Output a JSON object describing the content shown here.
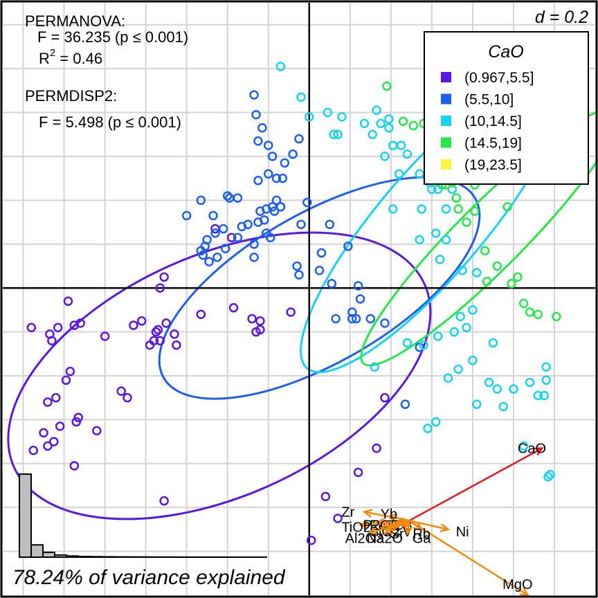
{
  "chart_data": {
    "type": "scatter",
    "subtype": "biplot with confidence ellipses",
    "grid": true,
    "scale_label": "d = 0.2",
    "variance_text": "78.24% of variance explained",
    "stats": {
      "permanova_title": "PERMANOVA:",
      "permanova_f": "F = 36.235 (p ≤ 0.001)",
      "permanova_r2_prefix": "R",
      "permanova_r2_sup": "2",
      "permanova_r2_value": " = 0.46",
      "permdisp_title": "PERMDISP2:",
      "permdisp_f": "F = 5.498 (p ≤ 0.001)"
    },
    "legend": {
      "title": "CaO",
      "placement": "top-right",
      "entries": [
        {
          "label": "(0.967,5.5]",
          "color": "#5B16E6"
        },
        {
          "label": "(5.5,10]",
          "color": "#1C5FF0"
        },
        {
          "label": "(10,14.5]",
          "color": "#15D3F4"
        },
        {
          "label": "(14.5,19]",
          "color": "#26E84A"
        },
        {
          "label": "(19,23.5]",
          "color": "#FAF53A"
        }
      ]
    },
    "xlim": [
      -1.5,
      1.4
    ],
    "ylim": [
      -1.4,
      1.3
    ],
    "groups": [
      {
        "label": "(0.967,5.5]",
        "color": "#5B16E6",
        "ellipse": {
          "cx": -0.44,
          "cy": -0.4,
          "rx": 1.1,
          "ry": 0.55,
          "angle": 24
        },
        "points": [
          [
            -1.36,
            -0.18
          ],
          [
            -1.27,
            -0.21
          ],
          [
            -1.23,
            -0.18
          ],
          [
            -1.18,
            -0.06
          ],
          [
            -1.15,
            -0.17
          ],
          [
            -1.12,
            -0.16
          ],
          [
            -1.26,
            -0.24
          ],
          [
            -1.19,
            -0.42
          ],
          [
            -1.17,
            -0.38
          ],
          [
            -1.13,
            -0.59
          ],
          [
            -1.24,
            -0.5
          ],
          [
            -1.28,
            -0.52
          ],
          [
            -1.22,
            -0.63
          ],
          [
            -1.25,
            -0.7
          ],
          [
            -1.3,
            -0.66
          ],
          [
            -1.28,
            -0.72
          ],
          [
            -1.35,
            -0.74
          ],
          [
            -1.15,
            -0.81
          ],
          [
            -1.14,
            -0.61
          ],
          [
            -1.04,
            -0.65
          ],
          [
            -1.0,
            -0.22
          ],
          [
            -0.92,
            -0.47
          ],
          [
            -0.89,
            -0.5
          ],
          [
            -0.86,
            -0.17
          ],
          [
            -0.82,
            -0.15
          ],
          [
            -0.78,
            -0.26
          ],
          [
            -0.75,
            -0.2
          ],
          [
            -0.76,
            -0.24
          ],
          [
            -0.74,
            -0.19
          ],
          [
            -0.73,
            -0.24
          ],
          [
            -0.7,
            -0.16
          ],
          [
            -0.66,
            -0.21
          ],
          [
            -0.65,
            -0.26
          ],
          [
            -0.73,
            0.0
          ],
          [
            -0.71,
            0.05
          ],
          [
            -0.53,
            -0.12
          ],
          [
            -0.37,
            -0.09
          ],
          [
            -0.28,
            -0.14
          ],
          [
            -0.26,
            -0.2
          ],
          [
            -0.24,
            -0.15
          ],
          [
            -0.24,
            -0.19
          ],
          [
            -0.09,
            -0.11
          ],
          [
            -0.71,
            -0.97
          ],
          [
            -0.46,
            0.27
          ],
          [
            -0.38,
            0.23
          ],
          [
            0.08,
            -0.95
          ],
          [
            0.14,
            -1.05
          ],
          [
            0.01,
            -1.15
          ],
          [
            0.24,
            -0.84
          ],
          [
            0.33,
            -0.73
          ],
          [
            0.37,
            -0.5
          ]
        ]
      },
      {
        "label": "(5.5,10]",
        "color": "#1C5FF0",
        "ellipse": {
          "cx": 0.05,
          "cy": 0.0,
          "rx": 0.88,
          "ry": 0.34,
          "angle": 30
        },
        "points": [
          [
            -0.6,
            0.33
          ],
          [
            -0.53,
            0.4
          ],
          [
            -0.51,
            0.19
          ],
          [
            -0.53,
            0.17
          ],
          [
            -0.5,
            0.22
          ],
          [
            -0.49,
            0.12
          ],
          [
            -0.52,
            0.15
          ],
          [
            -0.46,
            0.25
          ],
          [
            -0.45,
            0.14
          ],
          [
            -0.47,
            0.33
          ],
          [
            -0.42,
            0.27
          ],
          [
            -0.41,
            0.18
          ],
          [
            -0.4,
            0.42
          ],
          [
            -0.39,
            0.41
          ],
          [
            -0.35,
            0.41
          ],
          [
            -0.33,
            0.28
          ],
          [
            -0.35,
            0.23
          ],
          [
            -0.3,
            0.29
          ],
          [
            -0.27,
            0.2
          ],
          [
            -0.25,
            0.3
          ],
          [
            -0.27,
            0.14
          ],
          [
            -0.24,
            0.35
          ],
          [
            -0.22,
            0.31
          ],
          [
            -0.21,
            0.36
          ],
          [
            -0.18,
            0.37
          ],
          [
            -0.17,
            0.35
          ],
          [
            -0.16,
            0.4
          ],
          [
            -0.14,
            0.37
          ],
          [
            -0.14,
            0.37
          ],
          [
            -0.19,
            0.23
          ],
          [
            -0.21,
            0.25
          ],
          [
            -0.25,
            0.49
          ],
          [
            -0.2,
            0.52
          ],
          [
            -0.16,
            0.5
          ],
          [
            -0.13,
            0.5
          ],
          [
            -0.12,
            0.57
          ],
          [
            -0.08,
            0.61
          ],
          [
            -0.2,
            0.65
          ],
          [
            -0.25,
            0.67
          ],
          [
            -0.26,
            0.79
          ],
          [
            -0.27,
            0.88
          ],
          [
            -0.23,
            0.73
          ],
          [
            -0.18,
            0.6
          ],
          [
            -0.05,
            0.68
          ],
          [
            -0.01,
            0.39
          ],
          [
            -0.04,
            0.29
          ],
          [
            -0.06,
            0.1
          ],
          [
            -0.05,
            0.06
          ],
          [
            0.06,
            0.16
          ],
          [
            0.05,
            0.08
          ],
          [
            0.1,
            0.29
          ],
          [
            0.11,
            0.02
          ],
          [
            0.19,
            0.19
          ],
          [
            0.21,
            -0.11
          ],
          [
            0.23,
            -0.14
          ],
          [
            0.21,
            -0.14
          ],
          [
            0.24,
            0.01
          ],
          [
            0.25,
            -0.05
          ],
          [
            0.3,
            -0.14
          ],
          [
            0.37,
            -0.16
          ],
          [
            0.13,
            -0.14
          ],
          [
            0.54,
            -0.27
          ],
          [
            0.47,
            -0.53
          ]
        ]
      },
      {
        "label": "(10,14.5]",
        "color": "#15D3F4",
        "ellipse": {
          "cx": 0.6,
          "cy": 0.3,
          "rx": 0.94,
          "ry": 0.24,
          "angle": 49.5
        },
        "points": [
          [
            -0.14,
            1.01
          ],
          [
            0.0,
            0.78
          ],
          [
            -0.04,
            0.87
          ],
          [
            0.09,
            0.8
          ],
          [
            0.12,
            0.7
          ],
          [
            0.14,
            0.7
          ],
          [
            0.16,
            0.78
          ],
          [
            0.27,
            0.75
          ],
          [
            0.39,
            0.73
          ],
          [
            0.31,
            0.7
          ],
          [
            0.35,
            0.75
          ],
          [
            0.33,
            0.81
          ],
          [
            0.39,
            0.77
          ],
          [
            0.41,
            0.65
          ],
          [
            0.37,
            0.6
          ],
          [
            0.45,
            0.65
          ],
          [
            0.48,
            0.61
          ],
          [
            0.44,
            0.52
          ],
          [
            0.54,
            0.52
          ],
          [
            0.59,
            0.48
          ],
          [
            0.6,
            0.45
          ],
          [
            0.63,
            0.45
          ],
          [
            0.7,
            0.45
          ],
          [
            0.67,
            0.36
          ],
          [
            0.55,
            0.36
          ],
          [
            0.41,
            0.36
          ],
          [
            0.54,
            0.22
          ],
          [
            0.62,
            0.25
          ],
          [
            0.67,
            0.22
          ],
          [
            0.64,
            0.13
          ],
          [
            0.75,
            0.08
          ],
          [
            0.82,
            0.07
          ],
          [
            0.8,
            -0.1
          ],
          [
            0.74,
            -0.13
          ],
          [
            0.77,
            -0.18
          ],
          [
            0.71,
            -0.2
          ],
          [
            0.63,
            -0.22
          ],
          [
            0.56,
            -0.26
          ],
          [
            0.48,
            -0.25
          ],
          [
            0.32,
            -0.36
          ],
          [
            0.73,
            -0.37
          ],
          [
            0.8,
            -0.33
          ],
          [
            0.68,
            -0.41
          ],
          [
            0.9,
            -0.25
          ],
          [
            0.88,
            -0.43
          ],
          [
            0.92,
            -0.46
          ],
          [
            1.0,
            -0.46
          ],
          [
            1.08,
            -0.43
          ],
          [
            1.12,
            -0.49
          ],
          [
            1.15,
            -0.49
          ],
          [
            1.16,
            -0.42
          ],
          [
            1.16,
            -0.36
          ],
          [
            0.95,
            -0.54
          ],
          [
            0.82,
            -0.53
          ],
          [
            0.58,
            -0.64
          ],
          [
            0.62,
            -0.61
          ],
          [
            1.05,
            -0.72
          ],
          [
            1.18,
            -0.85
          ],
          [
            1.17,
            -0.86
          ]
        ]
      },
      {
        "label": "(14.5,19]",
        "color": "#26E84A",
        "ellipse": {
          "cx": 0.88,
          "cy": 0.23,
          "rx": 0.87,
          "ry": 0.15,
          "angle": 45
        },
        "points": [
          [
            0.38,
            0.92
          ],
          [
            0.46,
            0.76
          ],
          [
            0.51,
            0.74
          ],
          [
            0.56,
            0.75
          ],
          [
            0.62,
            0.52
          ],
          [
            0.65,
            0.47
          ],
          [
            0.67,
            0.47
          ],
          [
            0.7,
            0.48
          ],
          [
            0.72,
            0.41
          ],
          [
            0.73,
            0.36
          ],
          [
            0.77,
            0.3
          ],
          [
            0.81,
            0.35
          ],
          [
            0.86,
            0.17
          ],
          [
            0.87,
            0.03
          ],
          [
            0.92,
            0.1
          ],
          [
            0.99,
            0.02
          ],
          [
            1.02,
            0.05
          ],
          [
            1.05,
            -0.07
          ],
          [
            1.08,
            -0.11
          ],
          [
            1.12,
            -0.12
          ],
          [
            1.21,
            -0.13
          ],
          [
            0.97,
            0.37
          ],
          [
            0.81,
            0.47
          ]
        ]
      },
      {
        "label": "(19,23.5]",
        "color": "#FAF53A",
        "points": []
      }
    ],
    "loadings": [
      {
        "label": "CaO",
        "x": 1.14,
        "y": -0.73,
        "color": "#E8141B",
        "label_offset": [
          -0.05,
          0.0
        ]
      },
      {
        "label": "MgO",
        "x": 1.07,
        "y": -1.4,
        "color": "#F58A0A",
        "label_offset": [
          -0.05,
          0.05
        ]
      },
      {
        "label": "Zr",
        "x": 0.27,
        "y": -1.02,
        "color": "#F58A0A",
        "label_offset": [
          -0.08,
          0.0
        ]
      },
      {
        "label": "Ni",
        "x": 0.68,
        "y": -1.1,
        "color": "#F58A0A",
        "label_offset": [
          0.07,
          -0.01
        ]
      },
      {
        "label": "Yb",
        "x": 0.39,
        "y": -1.04,
        "color": "#F58A0A",
        "label_offset": [
          0.0,
          0.01
        ]
      },
      {
        "label": "Fe2O3",
        "x": 0.43,
        "y": -1.07,
        "color": "#F58A0A",
        "label_offset": [
          -0.03,
          -0.01
        ]
      },
      {
        "label": "TiO2",
        "x": 0.25,
        "y": -1.08,
        "color": "#F58A0A",
        "label_offset": [
          -0.02,
          -0.01
        ]
      },
      {
        "label": "P2O5",
        "x": 0.33,
        "y": -1.07,
        "color": "#F58A0A",
        "label_offset": [
          0.02,
          -0.01
        ]
      },
      {
        "label": "SiO2",
        "x": 0.36,
        "y": -1.09,
        "color": "#F58A0A",
        "label_offset": [
          0.01,
          -0.02
        ]
      },
      {
        "label": "Sr",
        "x": 0.38,
        "y": -1.1,
        "color": "#F58A0A",
        "label_offset": [
          0.05,
          -0.02
        ]
      },
      {
        "label": "V",
        "x": 0.46,
        "y": -1.09,
        "color": "#F58A0A",
        "label_offset": [
          0.02,
          -0.02
        ]
      },
      {
        "label": "Rb",
        "x": 0.55,
        "y": -1.1,
        "color": "#F58A0A",
        "label_offset": [
          0.0,
          -0.02
        ]
      },
      {
        "label": "Al2O3",
        "x": 0.29,
        "y": -1.12,
        "color": "#F58A0A",
        "label_offset": [
          -0.02,
          -0.02
        ]
      },
      {
        "label": "Na2O",
        "x": 0.37,
        "y": -1.12,
        "color": "#F58A0A",
        "label_offset": [
          0.0,
          -0.02
        ]
      },
      {
        "label": "Ga",
        "x": 0.48,
        "y": -1.12,
        "color": "#F58A0A",
        "label_offset": [
          0.07,
          -0.02
        ]
      }
    ],
    "loading_origin": [
      0.49,
      -1.06
    ],
    "scree": {
      "color": "#BEBEBE",
      "values": [
        0.7824,
        0.1157,
        0.0456,
        0.0203,
        0.0112,
        0.0062,
        0.0049,
        0.0036,
        0.0027,
        0.0022,
        0.0017,
        0.0013,
        0.001,
        0.0008,
        0.0006,
        0.0005,
        0.0004,
        0.0003,
        0.0002,
        0.0001,
        0.0001
      ]
    }
  }
}
